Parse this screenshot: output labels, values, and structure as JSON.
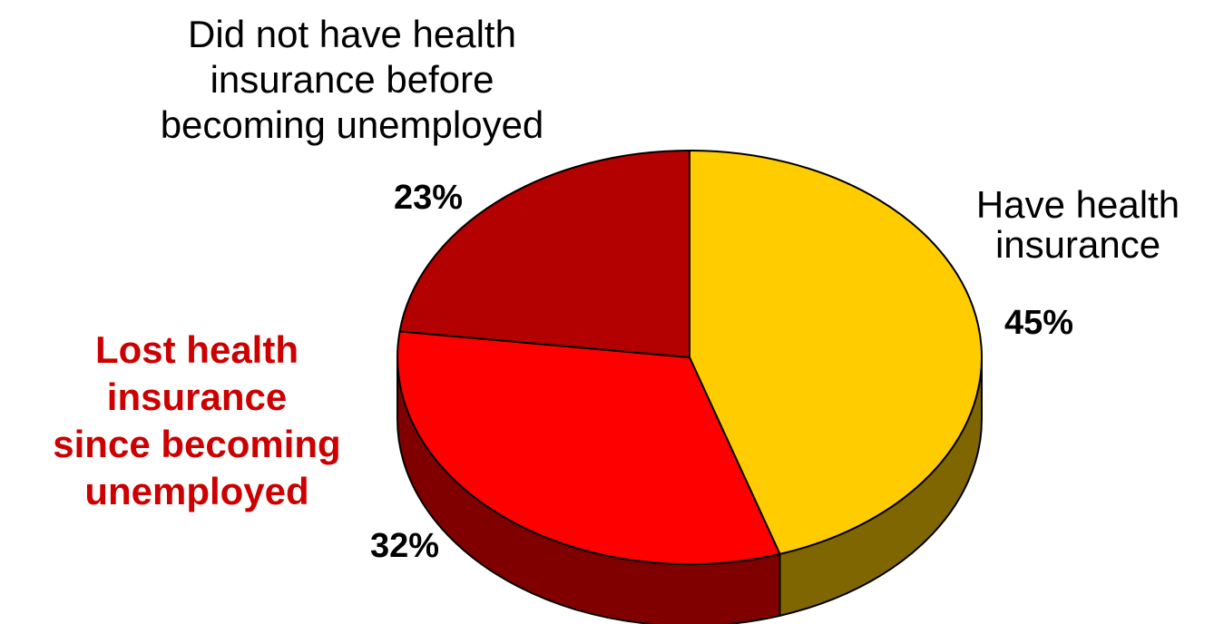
{
  "chart_data": {
    "type": "pie",
    "style": "3d",
    "slices": [
      {
        "value": 45,
        "value_label": "45%",
        "label_lines": [
          "Have health",
          "insurance"
        ],
        "color": "#FFCC00",
        "side_color": "#806600",
        "label_color": "#000000",
        "label_bold": false
      },
      {
        "value": 32,
        "value_label": "32%",
        "label_lines": [
          "Lost health",
          "insurance",
          "since becoming",
          "unemployed"
        ],
        "color": "#FF0000",
        "side_color": "#800000",
        "label_color": "#CC0000",
        "label_bold": true
      },
      {
        "value": 23,
        "value_label": "23%",
        "label_lines": [
          "Did not have health",
          "insurance before",
          "becoming unemployed"
        ],
        "color": "#B30000",
        "side_color": "#590000",
        "label_color": "#000000",
        "label_bold": false
      }
    ]
  }
}
